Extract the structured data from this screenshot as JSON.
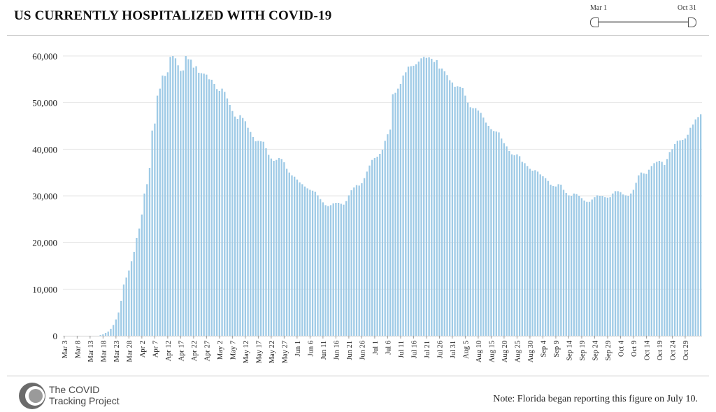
{
  "header": {
    "title": "US CURRENTLY HOSPITALIZED WITH COVID-19"
  },
  "date_slider": {
    "start_label": "Mar 1",
    "end_label": "Oct 31"
  },
  "footer": {
    "logo_line1": "The COVID",
    "logo_line2": "Tracking Project",
    "note": "Note: Florida began reporting this figure on July 10."
  },
  "colors": {
    "bar": "#9ecae6",
    "grid": "#e6e6e6",
    "axis_text": "#222222"
  },
  "chart_data": {
    "type": "bar",
    "title": "US CURRENTLY HOSPITALIZED WITH COVID-19",
    "xlabel": "",
    "ylabel": "",
    "ylim": [
      0,
      60000
    ],
    "yticks": [
      0,
      10000,
      20000,
      30000,
      40000,
      50000,
      60000
    ],
    "ytick_labels": [
      "0",
      "10,000",
      "20,000",
      "30,000",
      "40,000",
      "50,000",
      "60,000"
    ],
    "grid": true,
    "legend": "none",
    "start_date": "Mar 3",
    "xtick_labels": [
      "Mar 3",
      "Mar 8",
      "Mar 13",
      "Mar 18",
      "Mar 23",
      "Mar 28",
      "Apr 2",
      "Apr 7",
      "Apr 12",
      "Apr 17",
      "Apr 22",
      "Apr 27",
      "May 2",
      "May 7",
      "May 12",
      "May 17",
      "May 22",
      "May 27",
      "Jun 1",
      "Jun 6",
      "Jun 11",
      "Jun 16",
      "Jun 21",
      "Jun 26",
      "Jul 1",
      "Jul 6",
      "Jul 11",
      "Jul 16",
      "Jul 21",
      "Jul 26",
      "Jul 31",
      "Aug 5",
      "Aug 10",
      "Aug 15",
      "Aug 20",
      "Aug 25",
      "Aug 30",
      "Sep 4",
      "Sep 9",
      "Sep 14",
      "Sep 19",
      "Sep 24",
      "Sep 29",
      "Oct 4",
      "Oct 9",
      "Oct 14",
      "Oct 19",
      "Oct 24",
      "Oct 29"
    ],
    "values": [
      0,
      0,
      0,
      0,
      0,
      0,
      0,
      0,
      0,
      0,
      0,
      0,
      0,
      0,
      150,
      300,
      600,
      900,
      1500,
      2300,
      3500,
      5000,
      7500,
      11000,
      12500,
      14000,
      16000,
      18000,
      21000,
      23000,
      26000,
      30500,
      32500,
      36000,
      44000,
      45500,
      51500,
      53000,
      55800,
      55700,
      56500,
      59800,
      60000,
      59500,
      58000,
      56800,
      56900,
      60000,
      59300,
      59200,
      57500,
      57800,
      56400,
      56300,
      56200,
      56000,
      55000,
      54900,
      54000,
      52900,
      52500,
      53000,
      52300,
      50900,
      49500,
      48200,
      47000,
      46500,
      47300,
      46700,
      46000,
      44600,
      43700,
      42600,
      41700,
      41800,
      41700,
      41600,
      40200,
      38800,
      38000,
      37500,
      37700,
      38100,
      37900,
      37200,
      35800,
      35000,
      34400,
      34100,
      33500,
      32900,
      32500,
      32000,
      31600,
      31300,
      31100,
      30900,
      30100,
      29300,
      28600,
      28000,
      27800,
      28000,
      28400,
      28500,
      28500,
      28300,
      28100,
      28900,
      30100,
      31200,
      31800,
      32300,
      32200,
      32700,
      33800,
      35200,
      36500,
      37700,
      38100,
      38400,
      39000,
      39900,
      41800,
      43200,
      44200,
      51800,
      52100,
      53000,
      54000,
      55800,
      56500,
      57700,
      57800,
      57900,
      58200,
      58800,
      59500,
      59800,
      59600,
      59700,
      59400,
      58700,
      59100,
      57300,
      57300,
      56700,
      55900,
      54800,
      54300,
      53400,
      53500,
      53400,
      53100,
      51500,
      50000,
      49000,
      48800,
      48800,
      48300,
      47800,
      46800,
      45700,
      45000,
      44300,
      43900,
      43800,
      43600,
      42300,
      41300,
      40600,
      39600,
      38900,
      38700,
      38900,
      38500,
      37300,
      37000,
      36400,
      35800,
      35400,
      35500,
      35200,
      34600,
      34200,
      33800,
      33200,
      32400,
      32100,
      32000,
      32500,
      32400,
      31300,
      30600,
      30100,
      30000,
      30500,
      30400,
      30000,
      29500,
      29000,
      28700,
      28700,
      29200,
      29700,
      30100,
      30000,
      30000,
      29700,
      29600,
      29700,
      30500,
      31000,
      31000,
      30800,
      30300,
      30100,
      30000,
      30500,
      31300,
      32800,
      34400,
      35000,
      34800,
      34700,
      35600,
      36400,
      37000,
      37300,
      37500,
      37300,
      36600,
      37900,
      39400,
      40000,
      41100,
      41800,
      41900,
      42000,
      42300,
      43100,
      44600,
      45300,
      46400,
      46900,
      47500
    ]
  }
}
